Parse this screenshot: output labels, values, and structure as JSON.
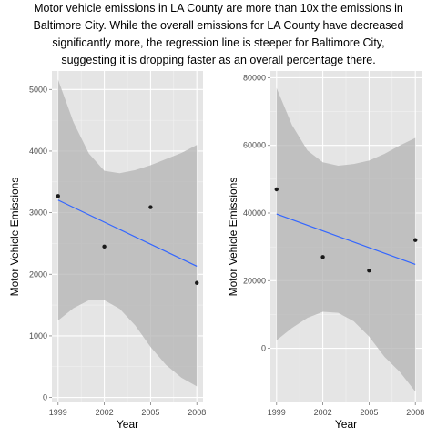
{
  "caption": {
    "line1": "Motor vehicle emissions in LA County are more than 10x the emissions in",
    "line2": "Baltimore City.  While the overall emissions for LA County have decreased",
    "line3": "significantly more, the regression line is steeper for Baltimore City,",
    "line4": "suggesting it is dropping faster as an overall percentage there."
  },
  "colors": {
    "panel": "#e5e5e5",
    "grid": "#ffffff",
    "band": "#b3b3b3",
    "line": "#3366ff",
    "point": "#1a1a1a"
  },
  "chart_data": [
    {
      "type": "scatter",
      "title": "",
      "xlabel": "Year",
      "ylabel": "Motor Vehicle Emissions",
      "x": [
        1999,
        2002,
        2005,
        2008
      ],
      "y": [
        3270,
        2450,
        3090,
        1860
      ],
      "xticks": [
        1999,
        2002,
        2005,
        2008
      ],
      "yticks": [
        0,
        1000,
        2000,
        3000,
        4000,
        5000
      ],
      "xlim": [
        1998.6,
        2008.4
      ],
      "ylim": [
        -80,
        5300
      ],
      "regression": {
        "x": [
          1999,
          2008
        ],
        "y": [
          3205,
          2130
        ]
      },
      "confidence_band": {
        "x": [
          1999,
          2000,
          2001,
          2002,
          2003,
          2004,
          2005,
          2006,
          2007,
          2008
        ],
        "upper": [
          5160,
          4470,
          3960,
          3680,
          3640,
          3690,
          3770,
          3870,
          3970,
          4100
        ],
        "lower": [
          1250,
          1450,
          1580,
          1580,
          1440,
          1170,
          820,
          530,
          320,
          180
        ]
      },
      "grid": true
    },
    {
      "type": "scatter",
      "title": "",
      "xlabel": "Year",
      "ylabel": "Motor Vehicle Emissions",
      "x": [
        1999,
        2002,
        2005,
        2008
      ],
      "y": [
        47000,
        27000,
        23000,
        32000
      ],
      "xticks": [
        1999,
        2002,
        2005,
        2008
      ],
      "yticks": [
        0,
        20000,
        40000,
        60000,
        80000
      ],
      "xlim": [
        1998.6,
        2008.4
      ],
      "ylim": [
        -16000,
        82000
      ],
      "regression": {
        "x": [
          1999,
          2008
        ],
        "y": [
          39700,
          24800
        ]
      },
      "confidence_band": {
        "x": [
          1999,
          2000,
          2001,
          2002,
          2003,
          2004,
          2005,
          2006,
          2007,
          2008
        ],
        "upper": [
          77000,
          66000,
          58500,
          55000,
          54000,
          54500,
          55500,
          57500,
          60000,
          62200
        ],
        "lower": [
          2400,
          6000,
          9000,
          10800,
          10500,
          8000,
          3500,
          -2500,
          -7000,
          -12800
        ]
      },
      "grid": true
    }
  ]
}
